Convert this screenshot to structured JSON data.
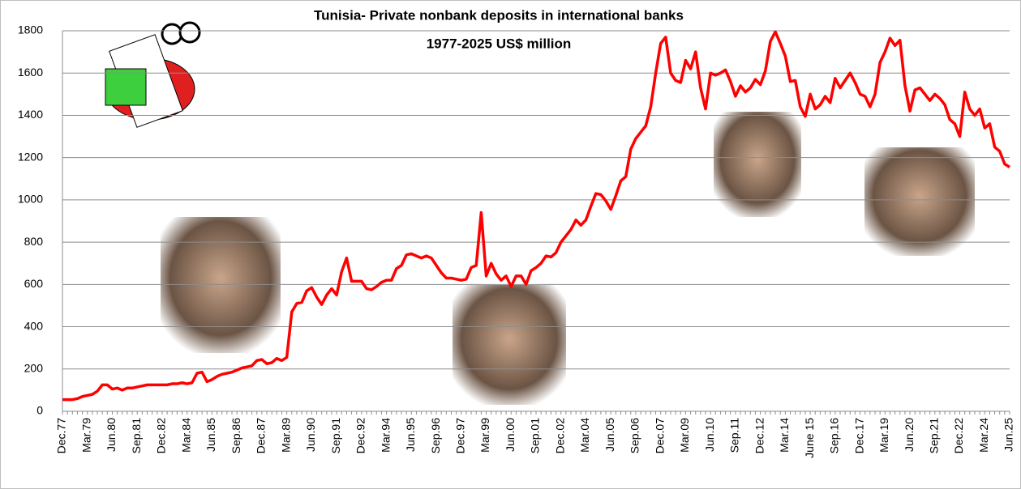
{
  "chart_data": {
    "type": "line",
    "title": "Tunisia- Private nonbank deposits in international banks",
    "subtitle": "1977-2025 US$ million",
    "color": "#ff0000",
    "ylim": [
      0,
      1800
    ],
    "yticks": [
      0,
      200,
      400,
      600,
      800,
      1000,
      1200,
      1400,
      1600,
      1800
    ],
    "grid": true,
    "categories": [
      "Dec.77",
      null,
      null,
      null,
      null,
      "Mar.79",
      null,
      null,
      null,
      null,
      "Jun.80",
      null,
      null,
      null,
      null,
      "Sep.81",
      null,
      null,
      null,
      null,
      "Dec.82",
      null,
      null,
      null,
      null,
      "Mar.84",
      null,
      null,
      null,
      null,
      "Jun.85",
      null,
      null,
      null,
      null,
      "Sep.86",
      null,
      null,
      null,
      null,
      "Dec.87",
      null,
      null,
      null,
      null,
      "Mar.89",
      null,
      null,
      null,
      null,
      "Jun.90",
      null,
      null,
      null,
      null,
      "Sep.91",
      null,
      null,
      null,
      null,
      "Dec.92",
      null,
      null,
      null,
      null,
      "Mar.94",
      null,
      null,
      null,
      null,
      "Jun.95",
      null,
      null,
      null,
      null,
      "Sep.96",
      null,
      null,
      null,
      null,
      "Dec.97",
      null,
      null,
      null,
      null,
      "Mar.99",
      null,
      null,
      null,
      null,
      "Jun.00",
      null,
      null,
      null,
      null,
      "Sep.01",
      null,
      null,
      null,
      null,
      "Dec.02",
      null,
      null,
      null,
      null,
      "Mar.04",
      null,
      null,
      null,
      null,
      "Jun.05",
      null,
      null,
      null,
      null,
      "Sep.06",
      null,
      null,
      null,
      null,
      "Dec.07",
      null,
      null,
      null,
      null,
      "Mar.09",
      null,
      null,
      null,
      null,
      "Jun.10",
      null,
      null,
      null,
      null,
      "Sep.11",
      null,
      null,
      null,
      null,
      "Dec.12",
      null,
      null,
      null,
      null,
      "Mar.14",
      null,
      null,
      null,
      null,
      "June 15",
      null,
      null,
      null,
      null,
      "Sep.16",
      null,
      null,
      null,
      null,
      "Dec.17",
      null,
      null,
      null,
      null,
      "Mar.19",
      null,
      null,
      null,
      null,
      "Jun.20",
      null,
      null,
      null,
      null,
      "Sep.21",
      null,
      null,
      null,
      null,
      "Dec.22",
      null,
      null,
      null,
      null,
      "Mar.24",
      null,
      null,
      null,
      null,
      "Jun.25"
    ],
    "values": [
      55,
      55,
      55,
      60,
      70,
      75,
      80,
      95,
      125,
      125,
      105,
      110,
      100,
      110,
      110,
      115,
      120,
      125,
      125,
      125,
      125,
      125,
      130,
      130,
      135,
      130,
      135,
      180,
      185,
      140,
      150,
      165,
      175,
      180,
      185,
      195,
      205,
      210,
      215,
      240,
      245,
      225,
      230,
      250,
      240,
      255,
      470,
      510,
      515,
      570,
      585,
      540,
      505,
      550,
      580,
      550,
      660,
      725,
      615,
      615,
      615,
      580,
      575,
      590,
      610,
      620,
      620,
      675,
      690,
      740,
      745,
      735,
      725,
      735,
      725,
      690,
      655,
      630,
      630,
      625,
      620,
      625,
      680,
      690,
      940,
      640,
      700,
      650,
      620,
      640,
      590,
      640,
      640,
      600,
      665,
      680,
      700,
      735,
      730,
      750,
      800,
      830,
      860,
      905,
      880,
      905,
      970,
      1030,
      1025,
      995,
      955,
      1020,
      1090,
      1110,
      1240,
      1290,
      1320,
      1350,
      1440,
      1600,
      1740,
      1770,
      1600,
      1565,
      1555,
      1660,
      1620,
      1700,
      1530,
      1430,
      1600,
      1590,
      1600,
      1615,
      1560,
      1490,
      1540,
      1510,
      1530,
      1570,
      1545,
      1610,
      1750,
      1795,
      1740,
      1680,
      1560,
      1565,
      1440,
      1395,
      1500,
      1430,
      1450,
      1490,
      1460,
      1575,
      1530,
      1565,
      1600,
      1555,
      1500,
      1490,
      1440,
      1500,
      1650,
      1700,
      1765,
      1730,
      1755,
      1540,
      1420,
      1520,
      1530,
      1500,
      1470,
      1500,
      1480,
      1450,
      1380,
      1360,
      1300,
      1510,
      1430,
      1400,
      1430,
      1340,
      1360,
      1250,
      1230,
      1170,
      1155
    ]
  }
}
